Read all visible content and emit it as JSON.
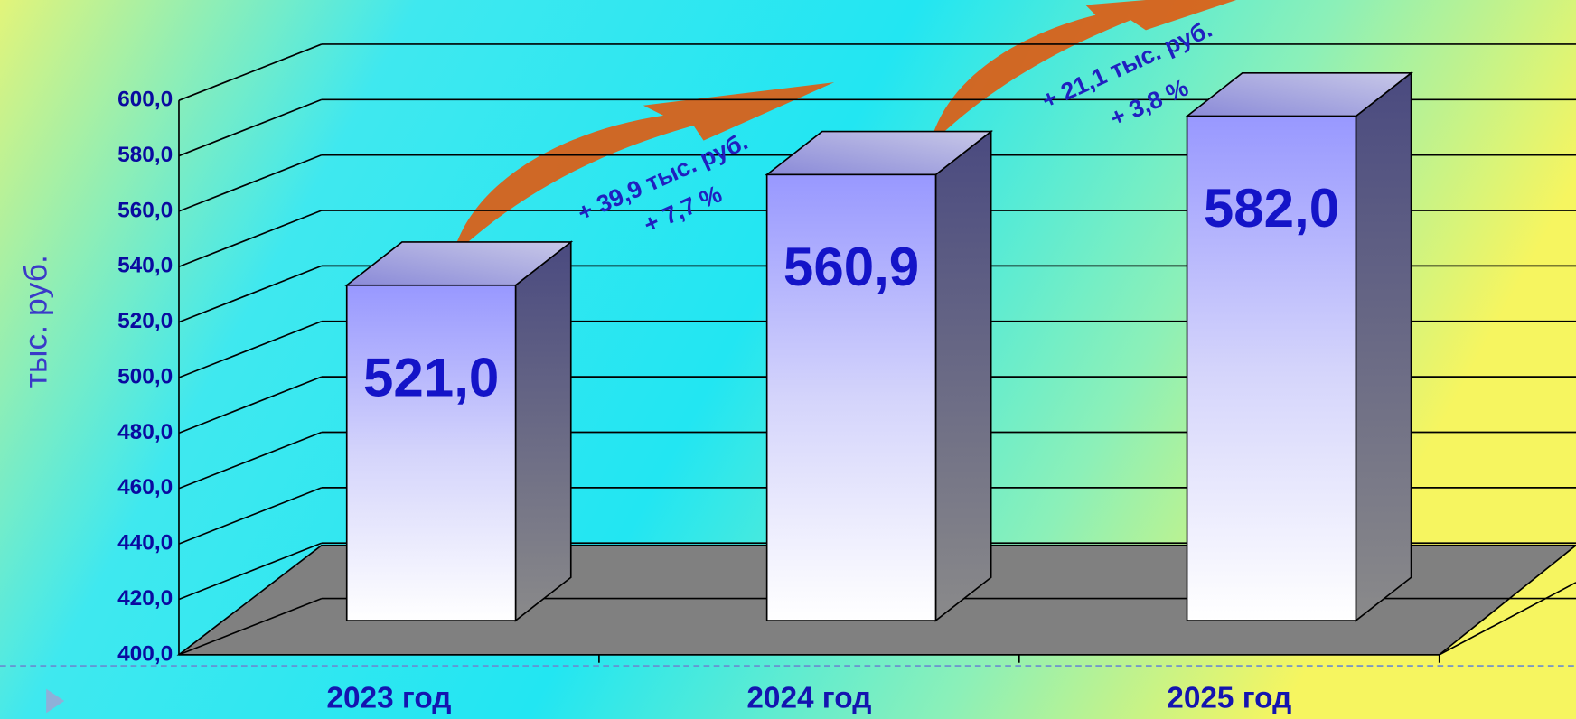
{
  "chart_data": {
    "type": "bar3d",
    "y_axis_label": "тыс. руб.",
    "categories": [
      "2023 год",
      "2024 год",
      "2025 год"
    ],
    "values": [
      521.0,
      560.9,
      582.0
    ],
    "value_labels": [
      "521,0",
      "560,9",
      "582,0"
    ],
    "color": "#9a9aff",
    "ylim": [
      400,
      600
    ],
    "yticks": [
      {
        "value": 400,
        "label": "400,0"
      },
      {
        "value": 420,
        "label": "420,0"
      },
      {
        "value": 440,
        "label": "440,0"
      },
      {
        "value": 460,
        "label": "460,0"
      },
      {
        "value": 480,
        "label": "480,0"
      },
      {
        "value": 500,
        "label": "500,0"
      },
      {
        "value": 520,
        "label": "520,0"
      },
      {
        "value": 540,
        "label": "540,0"
      },
      {
        "value": 560,
        "label": "560,0"
      },
      {
        "value": 580,
        "label": "580,0"
      },
      {
        "value": 600,
        "label": "600,0"
      }
    ],
    "grid": true,
    "annotations": [
      "+ 39,9 тыс. руб.",
      "+ 7,7 %",
      "+ 21,1 тыс. руб.",
      "+ 3,8 %"
    ]
  }
}
